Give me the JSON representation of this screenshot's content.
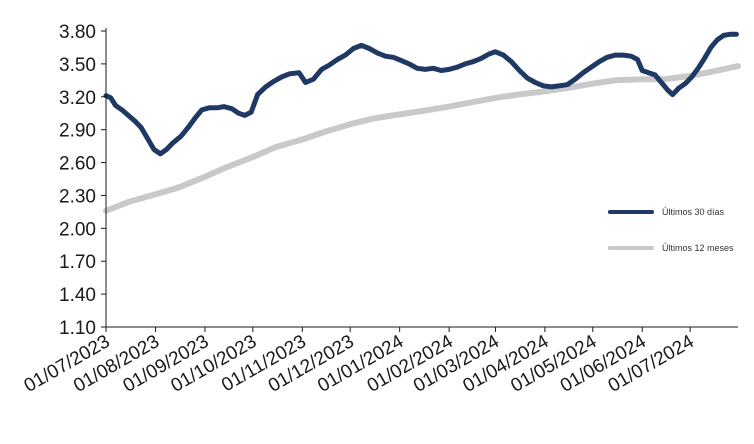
{
  "chart_data": {
    "type": "line",
    "title": "",
    "xlabel": "",
    "ylabel": "",
    "ylim": [
      1.1,
      3.8
    ],
    "yticks": [
      "3.80",
      "3.50",
      "3.20",
      "2.90",
      "2.60",
      "2.30",
      "2.00",
      "1.70",
      "1.40",
      "1.10"
    ],
    "x_range": [
      "2023-07-01",
      "2024-07-31"
    ],
    "xticks": [
      {
        "label": "01/07/2023",
        "date": "2023-07-01"
      },
      {
        "label": "01/08/2023",
        "date": "2023-08-01"
      },
      {
        "label": "01/09/2023",
        "date": "2023-09-01"
      },
      {
        "label": "01/10/2023",
        "date": "2023-10-01"
      },
      {
        "label": "01/11/2023",
        "date": "2023-11-01"
      },
      {
        "label": "01/12/2023",
        "date": "2023-12-01"
      },
      {
        "label": "01/01/2024",
        "date": "2024-01-01"
      },
      {
        "label": "01/02/2024",
        "date": "2024-02-01"
      },
      {
        "label": "01/03/2024",
        "date": "2024-03-01"
      },
      {
        "label": "01/04/2024",
        "date": "2024-04-01"
      },
      {
        "label": "01/05/2024",
        "date": "2024-05-01"
      },
      {
        "label": "01/06/2024",
        "date": "2024-06-01"
      },
      {
        "label": "01/07/2024",
        "date": "2024-07-01"
      }
    ],
    "grid": false,
    "legend_position": "right",
    "series": [
      {
        "name": "Últimos 30 días",
        "color": "#1f3864",
        "points": [
          [
            "2023-07-01",
            3.21
          ],
          [
            "2023-07-04",
            3.19
          ],
          [
            "2023-07-07",
            3.12
          ],
          [
            "2023-07-11",
            3.08
          ],
          [
            "2023-07-15",
            3.03
          ],
          [
            "2023-07-19",
            2.98
          ],
          [
            "2023-07-23",
            2.92
          ],
          [
            "2023-07-27",
            2.82
          ],
          [
            "2023-07-31",
            2.72
          ],
          [
            "2023-08-04",
            2.68
          ],
          [
            "2023-08-08",
            2.72
          ],
          [
            "2023-08-12",
            2.78
          ],
          [
            "2023-08-17",
            2.84
          ],
          [
            "2023-08-22",
            2.93
          ],
          [
            "2023-08-26",
            3.01
          ],
          [
            "2023-08-30",
            3.08
          ],
          [
            "2023-09-04",
            3.1
          ],
          [
            "2023-09-09",
            3.1
          ],
          [
            "2023-09-13",
            3.11
          ],
          [
            "2023-09-18",
            3.09
          ],
          [
            "2023-09-22",
            3.05
          ],
          [
            "2023-09-26",
            3.03
          ],
          [
            "2023-09-30",
            3.06
          ],
          [
            "2023-10-04",
            3.22
          ],
          [
            "2023-10-09",
            3.29
          ],
          [
            "2023-10-14",
            3.34
          ],
          [
            "2023-10-19",
            3.38
          ],
          [
            "2023-10-24",
            3.41
          ],
          [
            "2023-10-30",
            3.42
          ],
          [
            "2023-11-03",
            3.33
          ],
          [
            "2023-11-08",
            3.36
          ],
          [
            "2023-11-13",
            3.45
          ],
          [
            "2023-11-18",
            3.49
          ],
          [
            "2023-11-23",
            3.54
          ],
          [
            "2023-11-28",
            3.58
          ],
          [
            "2023-12-03",
            3.64
          ],
          [
            "2023-12-08",
            3.67
          ],
          [
            "2023-12-13",
            3.64
          ],
          [
            "2023-12-18",
            3.6
          ],
          [
            "2023-12-23",
            3.57
          ],
          [
            "2023-12-28",
            3.56
          ],
          [
            "2024-01-02",
            3.53
          ],
          [
            "2024-01-07",
            3.5
          ],
          [
            "2024-01-12",
            3.46
          ],
          [
            "2024-01-17",
            3.45
          ],
          [
            "2024-01-22",
            3.46
          ],
          [
            "2024-01-27",
            3.44
          ],
          [
            "2024-02-01",
            3.45
          ],
          [
            "2024-02-06",
            3.47
          ],
          [
            "2024-02-11",
            3.5
          ],
          [
            "2024-02-16",
            3.52
          ],
          [
            "2024-02-21",
            3.55
          ],
          [
            "2024-02-26",
            3.59
          ],
          [
            "2024-03-01",
            3.61
          ],
          [
            "2024-03-06",
            3.58
          ],
          [
            "2024-03-11",
            3.52
          ],
          [
            "2024-03-16",
            3.44
          ],
          [
            "2024-03-21",
            3.37
          ],
          [
            "2024-03-26",
            3.33
          ],
          [
            "2024-03-31",
            3.3
          ],
          [
            "2024-04-05",
            3.29
          ],
          [
            "2024-04-10",
            3.3
          ],
          [
            "2024-04-15",
            3.31
          ],
          [
            "2024-04-20",
            3.36
          ],
          [
            "2024-04-25",
            3.42
          ],
          [
            "2024-04-30",
            3.47
          ],
          [
            "2024-05-05",
            3.52
          ],
          [
            "2024-05-10",
            3.56
          ],
          [
            "2024-05-15",
            3.58
          ],
          [
            "2024-05-20",
            3.58
          ],
          [
            "2024-05-25",
            3.57
          ],
          [
            "2024-05-29",
            3.54
          ],
          [
            "2024-06-01",
            3.44
          ],
          [
            "2024-06-05",
            3.42
          ],
          [
            "2024-06-09",
            3.4
          ],
          [
            "2024-06-13",
            3.33
          ],
          [
            "2024-06-17",
            3.26
          ],
          [
            "2024-06-20",
            3.22
          ],
          [
            "2024-06-24",
            3.28
          ],
          [
            "2024-06-28",
            3.32
          ],
          [
            "2024-07-02",
            3.38
          ],
          [
            "2024-07-06",
            3.46
          ],
          [
            "2024-07-10",
            3.55
          ],
          [
            "2024-07-14",
            3.65
          ],
          [
            "2024-07-18",
            3.72
          ],
          [
            "2024-07-22",
            3.76
          ],
          [
            "2024-07-26",
            3.77
          ],
          [
            "2024-07-30",
            3.77
          ]
        ]
      },
      {
        "name": "Últimos 12 meses",
        "color": "#c9c9c9",
        "points": [
          [
            "2023-07-01",
            2.16
          ],
          [
            "2023-07-15",
            2.24
          ],
          [
            "2023-08-01",
            2.31
          ],
          [
            "2023-08-15",
            2.37
          ],
          [
            "2023-09-01",
            2.47
          ],
          [
            "2023-09-15",
            2.56
          ],
          [
            "2023-10-01",
            2.65
          ],
          [
            "2023-10-15",
            2.74
          ],
          [
            "2023-11-01",
            2.81
          ],
          [
            "2023-11-15",
            2.88
          ],
          [
            "2023-12-01",
            2.95
          ],
          [
            "2023-12-15",
            3.0
          ],
          [
            "2024-01-01",
            3.04
          ],
          [
            "2024-01-15",
            3.07
          ],
          [
            "2024-02-01",
            3.11
          ],
          [
            "2024-02-15",
            3.15
          ],
          [
            "2024-03-01",
            3.19
          ],
          [
            "2024-03-15",
            3.22
          ],
          [
            "2024-04-01",
            3.25
          ],
          [
            "2024-04-15",
            3.28
          ],
          [
            "2024-05-01",
            3.32
          ],
          [
            "2024-05-15",
            3.35
          ],
          [
            "2024-06-01",
            3.36
          ],
          [
            "2024-06-15",
            3.36
          ],
          [
            "2024-07-01",
            3.39
          ],
          [
            "2024-07-15",
            3.43
          ],
          [
            "2024-07-31",
            3.48
          ]
        ]
      }
    ]
  }
}
